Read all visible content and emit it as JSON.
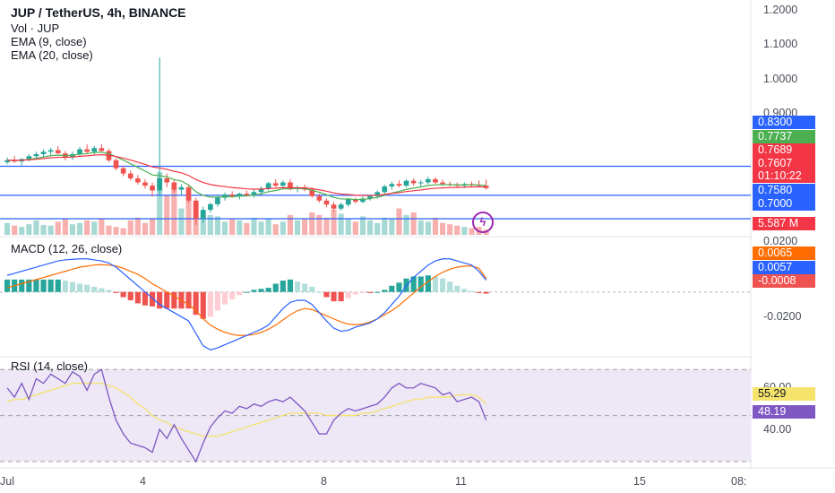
{
  "header": {
    "title": "JUP / TetherUS, 4h, BINANCE",
    "vol_label": "Vol · JUP",
    "ema9_label": "EMA (9, close)",
    "ema20_label": "EMA (20, close)"
  },
  "macd": {
    "label": "MACD (12, 26, close)"
  },
  "rsi": {
    "label": "RSI (14, close)"
  },
  "price_axis": {
    "ticks": [
      "1.2000",
      "1.1000",
      "1.0000",
      "0.9000"
    ]
  },
  "macd_axis": {
    "ticks": [
      "0.0200",
      "-0.0200"
    ]
  },
  "rsi_axis": {
    "ticks": [
      "60.00",
      "40.00"
    ]
  },
  "tags": {
    "t0830": "0.8300",
    "t07737": "0.7737",
    "t07689": "0.7689",
    "t07607": "0.7607",
    "countdown": "01:10:22",
    "t07580": "0.7580",
    "t07000": "0.7000",
    "vol": "5.587 M",
    "macd_signal": "0.0065",
    "macd_line": "0.0057",
    "macd_hist": "-0.0008",
    "rsi_ma": "55.29",
    "rsi_val": "48.19"
  },
  "x_axis": {
    "ticks": [
      "Jul",
      "4",
      "8",
      "11",
      "15",
      "08:"
    ]
  },
  "icons": {
    "alert": "lightning-icon"
  },
  "colors": {
    "up": "#26a69a",
    "down": "#ef5350",
    "ema9": "#4caf50",
    "ema20": "#f23645",
    "hline": "#2962ff",
    "macd_line": "#2962ff",
    "signal_line": "#ff6d00",
    "rsi_line": "#7e57c2",
    "rsi_ma": "#f6e36b",
    "rsi_band": "#ede7f6"
  },
  "chart_data": [
    {
      "type": "candlestick",
      "title": "JUP / TetherUS, 4h, BINANCE",
      "ylim": [
        0.66,
        1.22
      ],
      "horizontal_levels": [
        0.83,
        0.758,
        0.7
      ],
      "candles": [
        [
          0.84,
          0.852,
          0.835,
          0.845
        ],
        [
          0.845,
          0.856,
          0.838,
          0.842
        ],
        [
          0.842,
          0.85,
          0.832,
          0.848
        ],
        [
          0.848,
          0.86,
          0.842,
          0.855
        ],
        [
          0.855,
          0.866,
          0.848,
          0.86
        ],
        [
          0.86,
          0.872,
          0.852,
          0.866
        ],
        [
          0.866,
          0.876,
          0.858,
          0.87
        ],
        [
          0.87,
          0.88,
          0.86,
          0.862
        ],
        [
          0.862,
          0.868,
          0.845,
          0.852
        ],
        [
          0.852,
          0.866,
          0.846,
          0.86
        ],
        [
          0.86,
          0.878,
          0.855,
          0.872
        ],
        [
          0.872,
          0.884,
          0.862,
          0.866
        ],
        [
          0.866,
          0.88,
          0.858,
          0.875
        ],
        [
          0.875,
          0.885,
          0.865,
          0.868
        ],
        [
          0.868,
          0.874,
          0.84,
          0.845
        ],
        [
          0.845,
          0.85,
          0.82,
          0.825
        ],
        [
          0.825,
          0.832,
          0.805,
          0.812
        ],
        [
          0.812,
          0.82,
          0.795,
          0.8
        ],
        [
          0.8,
          0.808,
          0.785,
          0.79
        ],
        [
          0.79,
          0.798,
          0.775,
          0.782
        ],
        [
          0.782,
          0.79,
          0.755,
          0.77
        ],
        [
          0.77,
          1.1,
          0.76,
          0.8
        ],
        [
          0.8,
          0.812,
          0.778,
          0.79
        ],
        [
          0.79,
          0.798,
          0.765,
          0.772
        ],
        [
          0.772,
          0.785,
          0.76,
          0.778
        ],
        [
          0.778,
          0.785,
          0.74,
          0.745
        ],
        [
          0.745,
          0.752,
          0.685,
          0.7
        ],
        [
          0.7,
          0.73,
          0.69,
          0.722
        ],
        [
          0.722,
          0.74,
          0.715,
          0.736
        ],
        [
          0.736,
          0.76,
          0.73,
          0.752
        ],
        [
          0.752,
          0.765,
          0.745,
          0.76
        ],
        [
          0.76,
          0.768,
          0.752,
          0.755
        ],
        [
          0.755,
          0.765,
          0.748,
          0.762
        ],
        [
          0.762,
          0.77,
          0.755,
          0.758
        ],
        [
          0.758,
          0.772,
          0.752,
          0.766
        ],
        [
          0.766,
          0.78,
          0.76,
          0.775
        ],
        [
          0.775,
          0.792,
          0.77,
          0.788
        ],
        [
          0.788,
          0.798,
          0.778,
          0.782
        ],
        [
          0.782,
          0.795,
          0.775,
          0.79
        ],
        [
          0.79,
          0.798,
          0.77,
          0.775
        ],
        [
          0.775,
          0.782,
          0.765,
          0.778
        ],
        [
          0.778,
          0.785,
          0.768,
          0.772
        ],
        [
          0.772,
          0.778,
          0.752,
          0.756
        ],
        [
          0.756,
          0.762,
          0.74,
          0.745
        ],
        [
          0.745,
          0.75,
          0.728,
          0.735
        ],
        [
          0.735,
          0.742,
          0.718,
          0.725
        ],
        [
          0.725,
          0.74,
          0.72,
          0.735
        ],
        [
          0.735,
          0.752,
          0.73,
          0.748
        ],
        [
          0.748,
          0.752,
          0.738,
          0.742
        ],
        [
          0.742,
          0.755,
          0.738,
          0.75
        ],
        [
          0.75,
          0.76,
          0.745,
          0.756
        ],
        [
          0.756,
          0.77,
          0.75,
          0.766
        ],
        [
          0.766,
          0.784,
          0.76,
          0.78
        ],
        [
          0.78,
          0.792,
          0.772,
          0.786
        ],
        [
          0.786,
          0.795,
          0.778,
          0.782
        ],
        [
          0.782,
          0.798,
          0.778,
          0.794
        ],
        [
          0.794,
          0.8,
          0.782,
          0.788
        ],
        [
          0.788,
          0.796,
          0.78,
          0.79
        ],
        [
          0.79,
          0.804,
          0.785,
          0.798
        ],
        [
          0.798,
          0.803,
          0.786,
          0.79
        ],
        [
          0.79,
          0.797,
          0.782,
          0.786
        ],
        [
          0.786,
          0.792,
          0.78,
          0.784
        ],
        [
          0.784,
          0.79,
          0.776,
          0.782
        ],
        [
          0.782,
          0.79,
          0.776,
          0.786
        ],
        [
          0.786,
          0.792,
          0.78,
          0.784
        ],
        [
          0.784,
          0.795,
          0.778,
          0.782
        ],
        [
          0.782,
          0.797,
          0.772,
          0.776
        ]
      ],
      "volume": [
        18,
        14,
        12,
        16,
        22,
        15,
        14,
        20,
        24,
        16,
        18,
        22,
        20,
        24,
        14,
        12,
        10,
        22,
        26,
        18,
        24,
        95,
        60,
        70,
        40,
        55,
        48,
        35,
        30,
        28,
        20,
        24,
        22,
        18,
        26,
        20,
        24,
        16,
        20,
        30,
        22,
        24,
        34,
        30,
        26,
        38,
        32,
        24,
        20,
        28,
        22,
        18,
        26,
        24,
        40,
        30,
        34,
        22,
        20,
        26,
        18,
        16,
        14,
        12,
        10,
        12,
        8
      ]
    },
    {
      "type": "line",
      "title": "MACD (12, 26, close)",
      "series": [
        {
          "name": "MACD",
          "values": [
            0.008,
            0.009,
            0.01,
            0.011,
            0.012,
            0.013,
            0.014,
            0.015,
            0.0155,
            0.0158,
            0.016,
            0.016,
            0.0155,
            0.015,
            0.014,
            0.012,
            0.009,
            0.006,
            0.003,
            0.0,
            -0.003,
            -0.006,
            -0.008,
            -0.01,
            -0.012,
            -0.014,
            -0.02,
            -0.026,
            -0.028,
            -0.027,
            -0.0255,
            -0.024,
            -0.0225,
            -0.021,
            -0.0195,
            -0.018,
            -0.016,
            -0.012,
            -0.008,
            -0.005,
            -0.004,
            -0.004,
            -0.006,
            -0.01,
            -0.014,
            -0.0175,
            -0.019,
            -0.0185,
            -0.017,
            -0.016,
            -0.015,
            -0.013,
            -0.01,
            -0.006,
            -0.002,
            0.003,
            0.007,
            0.01,
            0.013,
            0.015,
            0.016,
            0.016,
            0.015,
            0.014,
            0.013,
            0.01,
            0.0057
          ]
        },
        {
          "name": "Signal",
          "values": [
            0.002,
            0.003,
            0.004,
            0.005,
            0.006,
            0.007,
            0.008,
            0.009,
            0.01,
            0.011,
            0.012,
            0.0125,
            0.013,
            0.0132,
            0.013,
            0.0125,
            0.0115,
            0.01,
            0.0085,
            0.0065,
            0.004,
            0.002,
            0.0,
            -0.002,
            -0.004,
            -0.006,
            -0.009,
            -0.013,
            -0.016,
            -0.018,
            -0.0195,
            -0.0205,
            -0.021,
            -0.021,
            -0.0205,
            -0.0195,
            -0.018,
            -0.016,
            -0.0135,
            -0.011,
            -0.009,
            -0.008,
            -0.0085,
            -0.01,
            -0.0115,
            -0.013,
            -0.0145,
            -0.0155,
            -0.0158,
            -0.0155,
            -0.0145,
            -0.013,
            -0.011,
            -0.009,
            -0.0065,
            -0.0035,
            -0.0005,
            0.0025,
            0.005,
            0.0075,
            0.0095,
            0.011,
            0.012,
            0.0125,
            0.0125,
            0.0115,
            0.0065
          ]
        }
      ],
      "histogram": [
        0.006,
        0.006,
        0.006,
        0.006,
        0.006,
        0.006,
        0.006,
        0.006,
        0.0055,
        0.0048,
        0.004,
        0.0035,
        0.0025,
        0.0018,
        0.001,
        -0.0005,
        -0.0025,
        -0.004,
        -0.0055,
        -0.0065,
        -0.007,
        -0.008,
        -0.008,
        -0.008,
        -0.008,
        -0.008,
        -0.011,
        -0.013,
        -0.012,
        -0.009,
        -0.006,
        -0.0035,
        -0.0015,
        0.0,
        0.001,
        0.0015,
        0.002,
        0.004,
        0.0055,
        0.006,
        0.005,
        0.004,
        0.0025,
        0.0,
        -0.0025,
        -0.0045,
        -0.0045,
        -0.003,
        -0.0012,
        -0.0005,
        -0.0005,
        0.0,
        0.001,
        0.003,
        0.0045,
        0.0065,
        0.0075,
        0.0075,
        0.008,
        0.0075,
        0.0065,
        0.005,
        0.003,
        0.0015,
        0.0005,
        -0.0005,
        -0.0008
      ],
      "ylim": [
        -0.03,
        0.025
      ]
    },
    {
      "type": "line",
      "title": "RSI (14, close)",
      "ylim": [
        28,
        74
      ],
      "band": [
        30,
        70
      ],
      "series": [
        {
          "name": "RSI",
          "values": [
            62,
            58,
            64,
            57,
            66,
            64,
            68,
            66,
            64,
            69,
            67,
            61,
            68,
            70,
            58,
            48,
            42,
            38,
            37,
            36,
            34,
            44,
            40,
            46,
            40,
            35,
            30,
            38,
            45,
            49,
            52,
            51,
            54,
            53,
            55,
            54,
            56,
            57,
            56,
            58,
            55,
            52,
            47,
            42,
            42,
            48,
            51,
            53,
            52,
            53,
            54,
            55,
            58,
            62,
            64,
            62,
            62,
            64,
            63,
            62,
            59,
            60,
            56,
            57,
            58,
            56,
            48
          ]
        },
        {
          "name": "RSI MA",
          "values": [
            56,
            57,
            57,
            58,
            59,
            60,
            61,
            62,
            63,
            64,
            64,
            64,
            64,
            64,
            63,
            62,
            60,
            58,
            55,
            53,
            50,
            48,
            47,
            45,
            44,
            43,
            42,
            41,
            41,
            41,
            42,
            43,
            44,
            45,
            46,
            47,
            48,
            49,
            50,
            51,
            51,
            51,
            51,
            51,
            50,
            50,
            50,
            50,
            50,
            51,
            51,
            52,
            53,
            54,
            55,
            56,
            57,
            57,
            58,
            58,
            58,
            58,
            59,
            59,
            59,
            58,
            55
          ]
        }
      ]
    }
  ]
}
